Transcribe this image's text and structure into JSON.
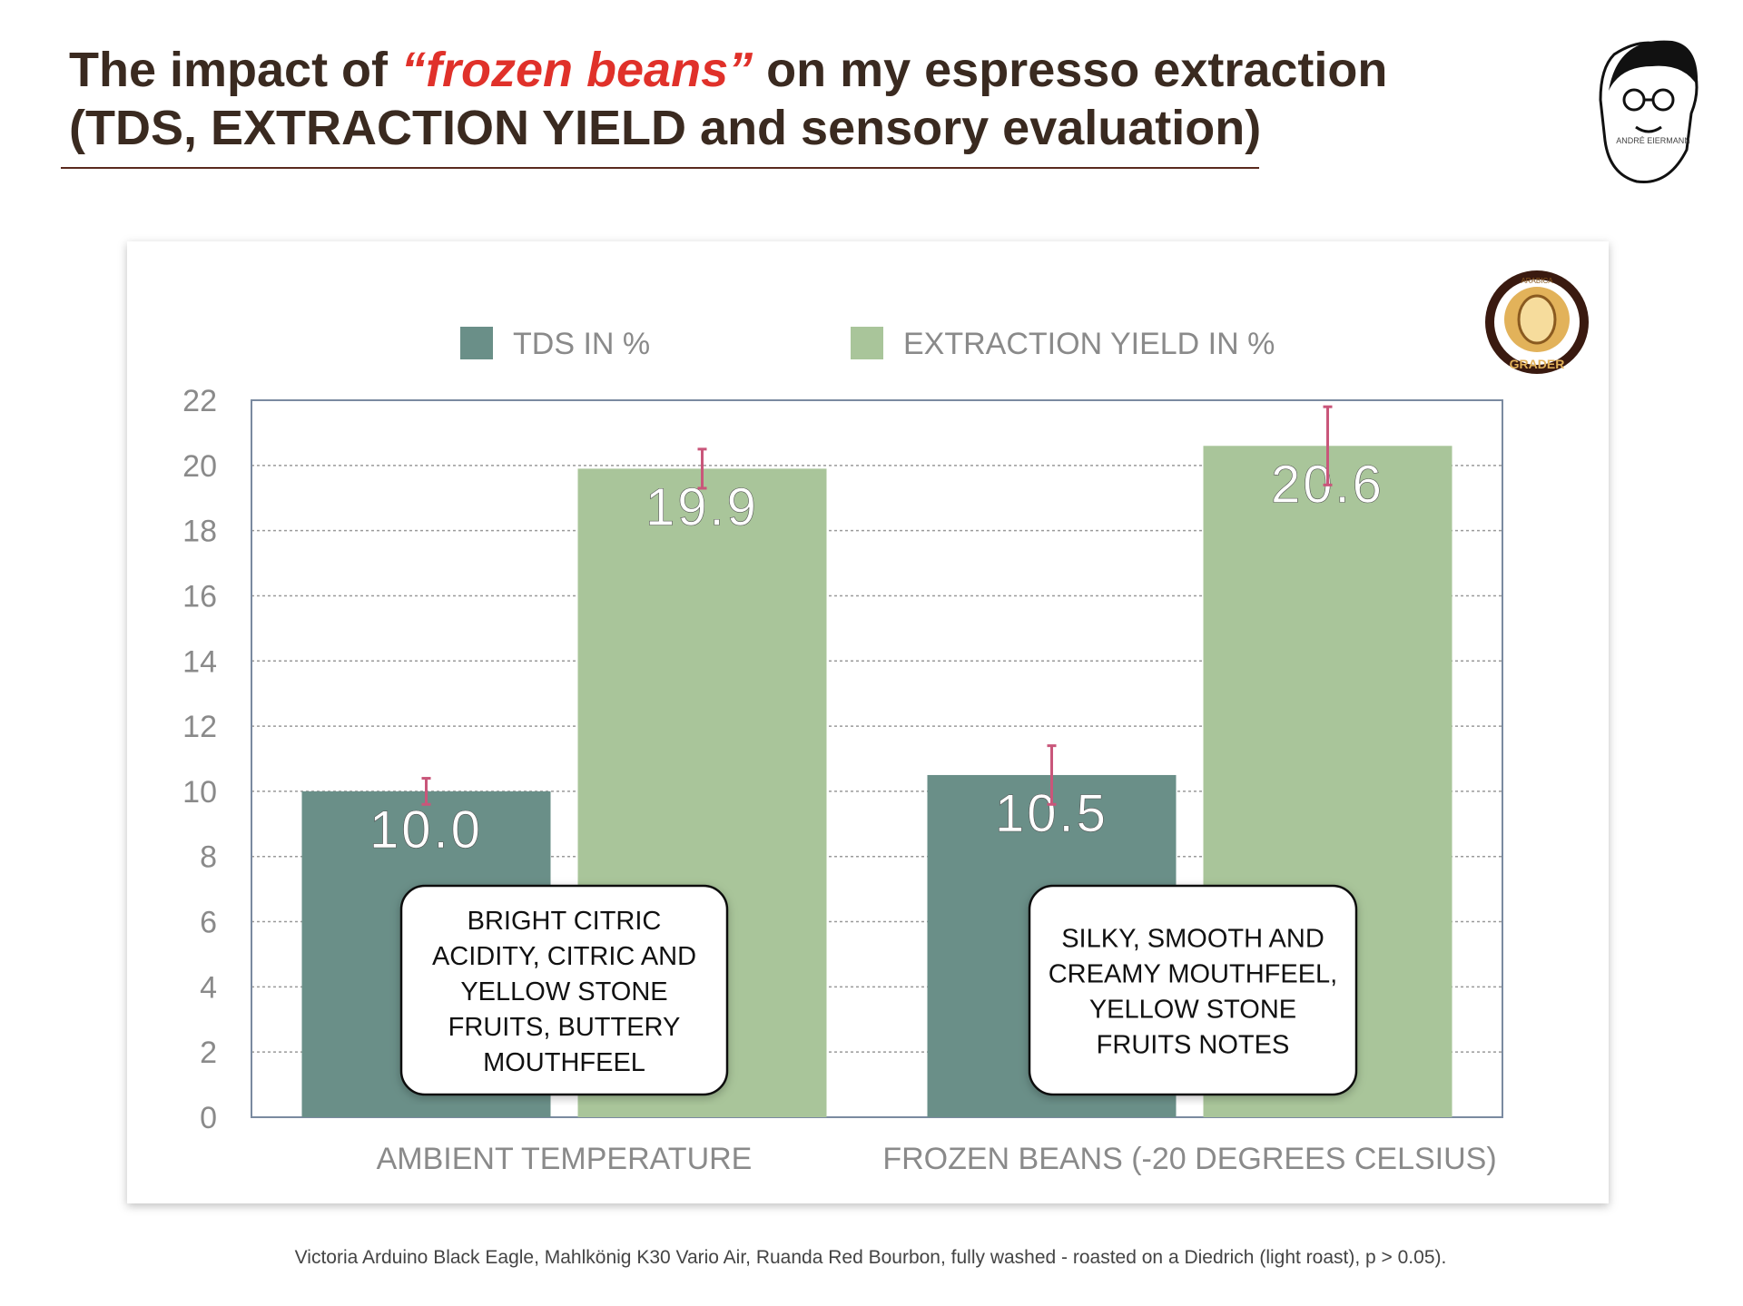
{
  "header": {
    "title_before": "The impact of ",
    "title_highlight": "“frozen beans”",
    "title_after": " on my espresso extraction",
    "title_line2": "(TDS, EXTRACTION YIELD and sensory evaluation)"
  },
  "logos": {
    "author": "ANDRÉ EIERMANN",
    "badge_top": "ARABICA",
    "badge_bottom": "GRADER"
  },
  "chart_data": {
    "type": "bar",
    "categories": [
      "AMBIENT TEMPERATURE",
      "FROZEN BEANS (-20 DEGREES CELSIUS)"
    ],
    "series": [
      {
        "name": "TDS IN %",
        "color": "#6a8f88",
        "values": [
          10.0,
          10.5
        ],
        "value_labels": [
          "10.0",
          "10.5"
        ],
        "errors": [
          0.4,
          0.9
        ]
      },
      {
        "name": "EXTRACTION YIELD IN %",
        "color": "#a9c59a",
        "values": [
          19.9,
          20.6
        ],
        "value_labels": [
          "19.9",
          "20.6"
        ],
        "errors": [
          0.6,
          1.2
        ]
      }
    ],
    "error_color": "#c9567a",
    "ylim": [
      0,
      22
    ],
    "yticks": [
      0,
      2,
      4,
      6,
      8,
      10,
      12,
      14,
      16,
      18,
      20,
      22
    ],
    "grid": true,
    "legend": "top",
    "annotations": [
      {
        "lines": [
          "BRIGHT CITRIC",
          "ACIDITY, CITRIC AND",
          "YELLOW STONE",
          "FRUITS, BUTTERY",
          "MOUTHFEEL"
        ]
      },
      {
        "lines": [
          "SILKY, SMOOTH AND",
          "CREAMY MOUTHFEEL,",
          "YELLOW STONE",
          "FRUITS NOTES"
        ]
      }
    ]
  },
  "footnote": "Victoria Arduino Black Eagle, Mahlkönig K30 Vario Air, Ruanda Red Bourbon, fully washed - roasted on a Diedrich (light roast), p > 0.05)."
}
